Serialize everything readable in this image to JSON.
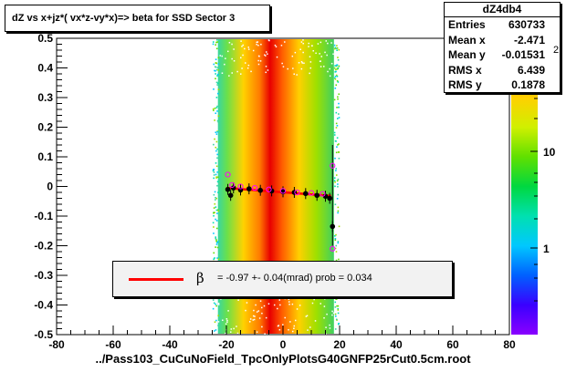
{
  "title": "dZ vs  x+jz*( vx*z-vy*x)=> beta  for SSD Sector 3",
  "stats": {
    "name": "dZ4db4",
    "rows": [
      {
        "key": "Entries",
        "value": "630733"
      },
      {
        "key": "Mean x",
        "value": "-2.471"
      },
      {
        "key": "Mean y",
        "value": "-0.01531"
      },
      {
        "key": "RMS x",
        "value": "6.439"
      },
      {
        "key": "RMS y",
        "value": "0.1878"
      }
    ]
  },
  "legend": {
    "symbol": "β",
    "text": "=    -0.97 +-     0.04(mrad) prob = 0.034",
    "line_color": "#ff0000"
  },
  "x_axis_title": "../Pass103_CuCuNoField_TpcOnlyPlotsG40GNFP25rCut0.5cm.root",
  "colorbar_label_fragment": "2",
  "chart_data": {
    "type": "heatmap",
    "title": "dZ vs  x+jz*( vx*z-vy*x)=> beta  for SSD Sector 3",
    "xlim": [
      -80,
      80
    ],
    "ylim": [
      -0.5,
      0.5
    ],
    "x_ticks": [
      "-80",
      "-60",
      "-40",
      "-20",
      "0",
      "20",
      "40",
      "60",
      "80"
    ],
    "y_ticks": [
      "-0.5",
      "-0.4",
      "-0.3",
      "-0.2",
      "-0.1",
      "0",
      "0.1",
      "0.2",
      "0.3",
      "0.4",
      "0.5"
    ],
    "z_scale": "log",
    "z_ticks": [
      "1",
      "10"
    ],
    "band_x_range": [
      -23,
      18
    ],
    "fit_line": {
      "slope_mrad": -0.97,
      "slope_error_mrad": 0.04,
      "prob": 0.034,
      "x_range": [
        -20,
        17
      ],
      "y_at_start": -0.005,
      "y_at_end": -0.032,
      "color": "#ff0000"
    },
    "profile_black": [
      {
        "x": -19.5,
        "y": -0.01
      },
      {
        "x": -18.5,
        "y": -0.03
      },
      {
        "x": -17.5,
        "y": -0.005
      },
      {
        "x": -15,
        "y": -0.012
      },
      {
        "x": -12,
        "y": -0.008
      },
      {
        "x": -8,
        "y": -0.013
      },
      {
        "x": -4,
        "y": -0.015
      },
      {
        "x": 0,
        "y": -0.018
      },
      {
        "x": 4,
        "y": -0.02
      },
      {
        "x": 8,
        "y": -0.024
      },
      {
        "x": 12,
        "y": -0.03
      },
      {
        "x": 15,
        "y": -0.033
      },
      {
        "x": 16.5,
        "y": -0.04
      },
      {
        "x": 17.5,
        "y": -0.135
      }
    ],
    "profile_magenta": [
      {
        "x": -19.5,
        "y": 0.04
      },
      {
        "x": -18,
        "y": 0.005
      },
      {
        "x": -15,
        "y": 0.0
      },
      {
        "x": -10,
        "y": -0.005
      },
      {
        "x": -5,
        "y": -0.01
      },
      {
        "x": 0,
        "y": -0.015
      },
      {
        "x": 5,
        "y": -0.02
      },
      {
        "x": 10,
        "y": -0.022
      },
      {
        "x": 14,
        "y": -0.025
      },
      {
        "x": 17.5,
        "y": 0.07
      },
      {
        "x": 17.5,
        "y": -0.21
      }
    ]
  }
}
